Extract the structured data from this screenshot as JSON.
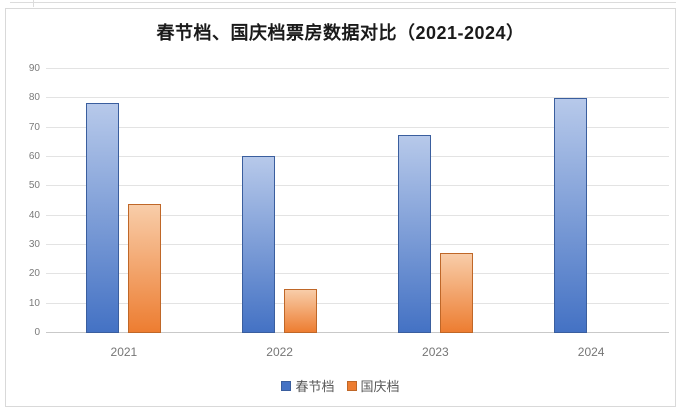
{
  "window": {
    "background": "#ffffff",
    "frame_border_color": "#d9d9d9"
  },
  "chart_data": {
    "type": "bar",
    "title": "春节档、国庆档票房数据对比（2021-2024）",
    "categories": [
      "2021",
      "2022",
      "2023",
      "2024"
    ],
    "series": [
      {
        "key": "spring-festival",
        "name": "春节档",
        "values": [
          78.43,
          60.39,
          67.58,
          80.16
        ],
        "color": "#4472c4",
        "color_top": "#b7c9ea",
        "border": "#3a5e9e"
      },
      {
        "key": "national-day",
        "name": "国庆档",
        "values": [
          43.85,
          14.96,
          27.34,
          null
        ],
        "color": "#ed7d31",
        "color_top": "#f8cda9",
        "border": "#bf6728"
      }
    ],
    "xlabel": "",
    "ylabel": "",
    "ylim": [
      0,
      90
    ],
    "yticks": [
      0,
      10,
      20,
      30,
      40,
      50,
      60,
      70,
      80,
      90
    ],
    "grid": "horizontal",
    "legend_position": "bottom"
  },
  "axis_style": {
    "tick_label_color": "#7a7a7a",
    "gridline_color": "#e3e3e3"
  }
}
